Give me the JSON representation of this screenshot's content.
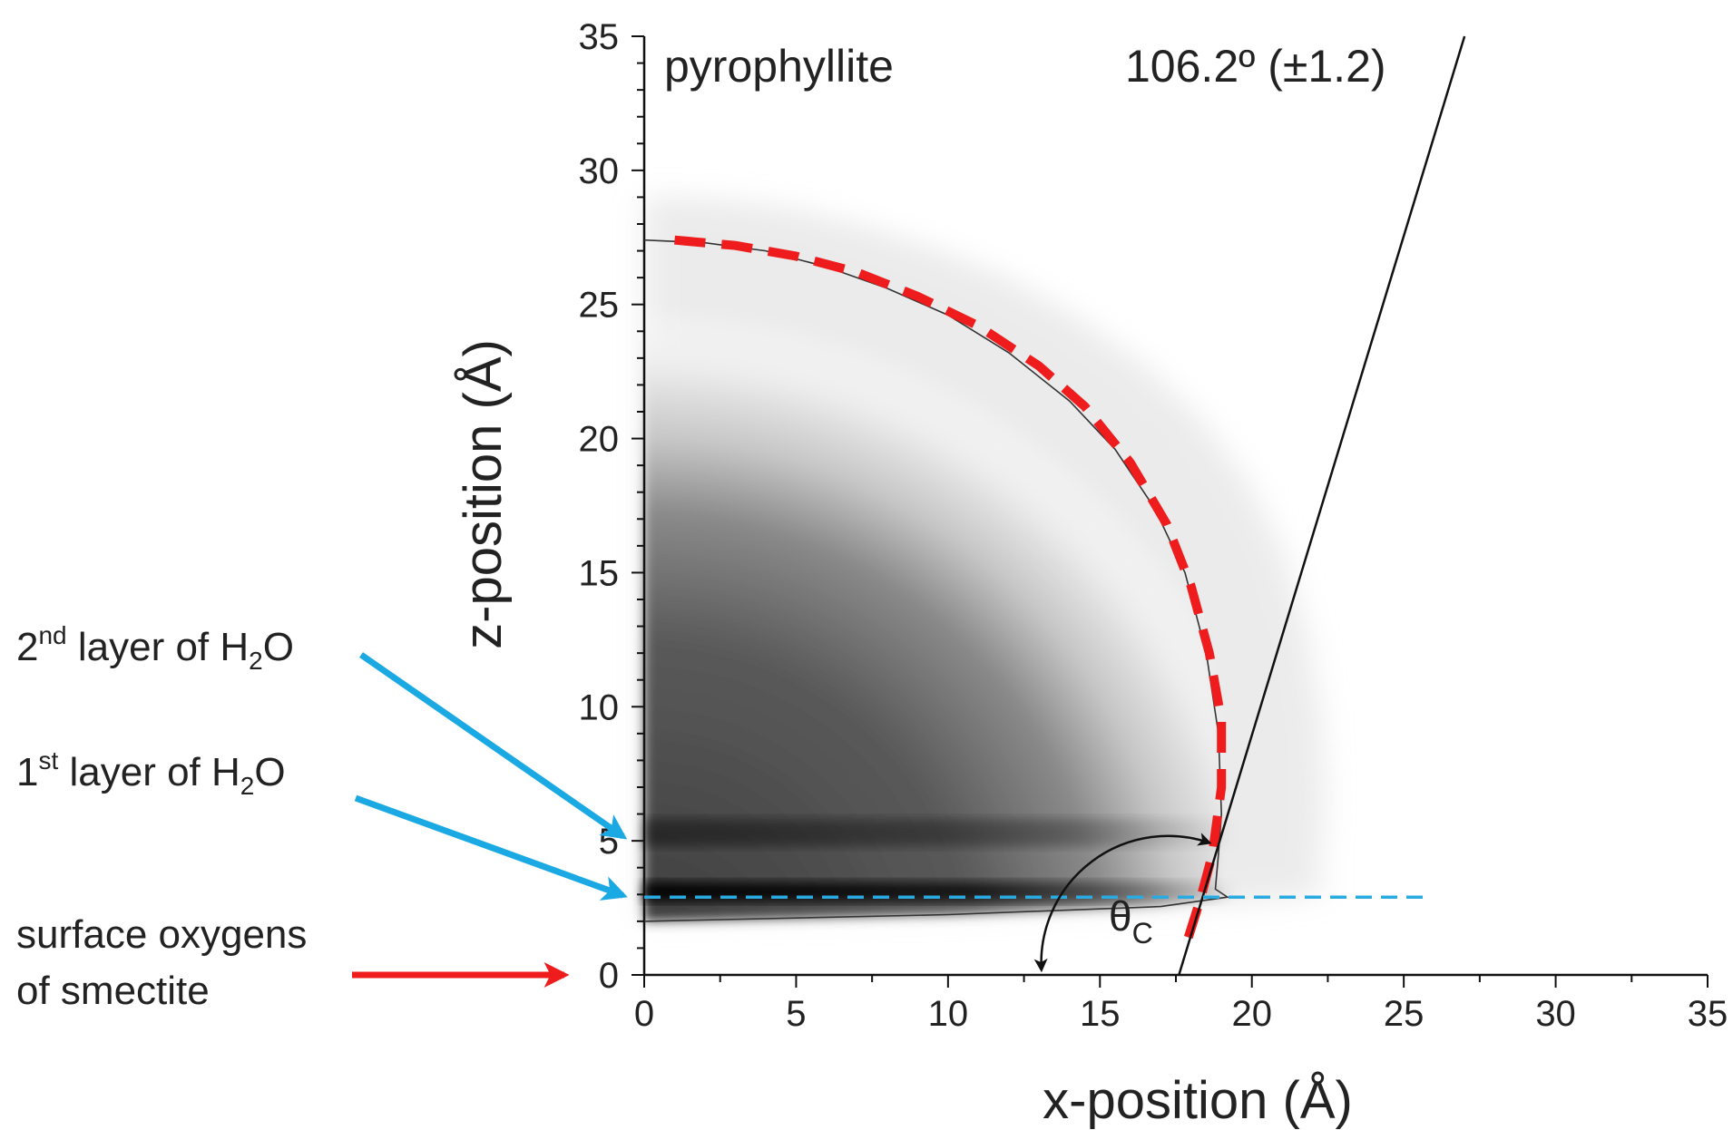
{
  "chart_data": {
    "type": "heatmap",
    "title": "",
    "xlabel": "x-position (Å)",
    "ylabel": "z-position (Å)",
    "xlim": [
      0,
      35
    ],
    "ylim": [
      0,
      35
    ],
    "x_ticks": [
      "0",
      "5",
      "10",
      "15",
      "20",
      "25",
      "30",
      "35"
    ],
    "y_ticks": [
      "0",
      "5",
      "10",
      "15",
      "20",
      "25",
      "30",
      "35"
    ],
    "material_label": "pyrophyllite",
    "angle_label": "106.2º (±1.2)",
    "contact_angle_symbol": "θ",
    "contact_angle_subscript": "C",
    "droplet_outline": [
      [
        0,
        27.4
      ],
      [
        2,
        27.3
      ],
      [
        4,
        27.0
      ],
      [
        6,
        26.4
      ],
      [
        8,
        25.6
      ],
      [
        10,
        24.6
      ],
      [
        12,
        23.2
      ],
      [
        14,
        21.4
      ],
      [
        15.5,
        19.6
      ],
      [
        16.8,
        17.4
      ],
      [
        17.8,
        15.0
      ],
      [
        18.5,
        12.0
      ],
      [
        18.9,
        9.0
      ],
      [
        19.0,
        6.0
      ],
      [
        18.9,
        4.5
      ],
      [
        18.8,
        3.2
      ],
      [
        19.2,
        2.9
      ],
      [
        17.0,
        2.55
      ],
      [
        10,
        2.25
      ],
      [
        0,
        2.0
      ]
    ],
    "circle_fit": [
      [
        1,
        27.4
      ],
      [
        3,
        27.2
      ],
      [
        5,
        26.8
      ],
      [
        7,
        26.2
      ],
      [
        9,
        25.3
      ],
      [
        11,
        24.2
      ],
      [
        13,
        22.7
      ],
      [
        14.5,
        21.2
      ],
      [
        16,
        19.1
      ],
      [
        17.2,
        16.8
      ],
      [
        18,
        14.5
      ],
      [
        18.6,
        12.0
      ],
      [
        19.0,
        9.5
      ],
      [
        19.0,
        7.0
      ],
      [
        18.7,
        4.5
      ],
      [
        18.3,
        2.8
      ],
      [
        17.8,
        1.0
      ]
    ],
    "tangent_line": [
      [
        17.6,
        0
      ],
      [
        27.0,
        35.0
      ]
    ],
    "interface_z": 2.9,
    "interface_x": [
      0,
      25.7
    ],
    "layers": [
      {
        "name": "2nd layer of H2O",
        "z": 5.3
      },
      {
        "name": "1st layer of H2O",
        "z": 3.1
      }
    ],
    "surface_z": 0
  },
  "annotations": {
    "layer2": {
      "prefix": "2",
      "sup": "nd",
      "text": " layer of H",
      "sub": "2",
      "suffix": "O"
    },
    "layer1": {
      "prefix": "1",
      "sup": "st",
      "text": " layer of H",
      "sub": "2",
      "suffix": "O"
    },
    "surface_line1": "surface oxygens",
    "surface_line2": "of smectite"
  },
  "colors": {
    "circle_fit": "#ee1c1c",
    "interface_line": "#29abe2",
    "layer_arrows": "#1ba9e3",
    "surface_arrow": "#ee1c1c"
  }
}
